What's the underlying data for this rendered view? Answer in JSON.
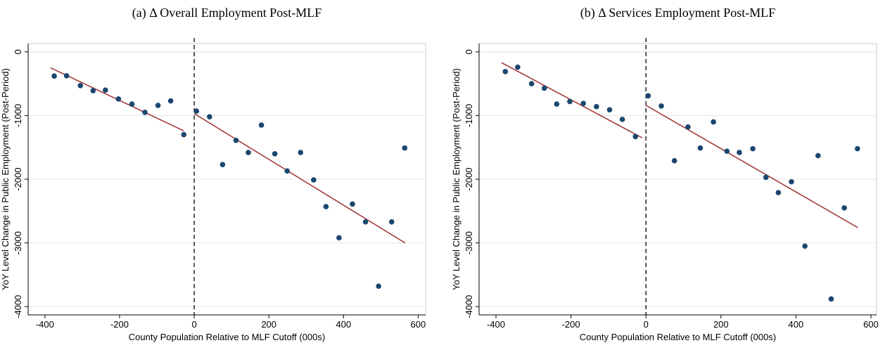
{
  "chart_data": [
    {
      "type": "scatter",
      "title": "(a) Δ Overall Employment Post-MLF",
      "x_label": "County Population Relative to MLF Cutoff (000s)",
      "y_label": "YoY Level Change in Public Employment (Post-Period)",
      "xlim": [
        -445,
        620
      ],
      "ylim": [
        -4130,
        130
      ],
      "xticks": [
        -400,
        -200,
        0,
        200,
        400,
        600
      ],
      "yticks": [
        0,
        -1000,
        -2000,
        -3000,
        -4000
      ],
      "grid": true,
      "cutoff_x": 0,
      "series": [
        {
          "color": "#1a476f",
          "x": [
            -375,
            -342,
            -305,
            -271,
            -238,
            -203,
            -167,
            -132,
            -97,
            -63,
            -28,
            6,
            41,
            76,
            112,
            145,
            180,
            216,
            249,
            285,
            320,
            353,
            388,
            424,
            459,
            494,
            529,
            564
          ],
          "values": [
            -380,
            -375,
            -530,
            -610,
            -600,
            -740,
            -820,
            -950,
            -840,
            -770,
            -1300,
            -930,
            -1020,
            -1770,
            -1390,
            -1580,
            -1150,
            -1600,
            -1870,
            -1580,
            -2010,
            -2430,
            -2920,
            -2390,
            -2670,
            -3680,
            -2670,
            -1510
          ]
        }
      ],
      "fits": [
        {
          "color": "#a03030",
          "x": [
            -385,
            -28
          ],
          "values": [
            -250,
            -1240
          ]
        },
        {
          "color": "#a03030",
          "x": [
            0,
            565
          ],
          "values": [
            -970,
            -3000
          ]
        }
      ]
    },
    {
      "type": "scatter",
      "title": "(b) Δ Services Employment Post-MLF",
      "x_label": "County Population Relative to MLF Cutoff (000s)",
      "y_label": "YoY Level Change in Public Employment (Post-Period)",
      "xlim": [
        -445,
        615
      ],
      "ylim": [
        -4130,
        130
      ],
      "xticks": [
        -400,
        -200,
        0,
        200,
        400,
        600
      ],
      "yticks": [
        0,
        -1000,
        -2000,
        -3000,
        -4000
      ],
      "grid": true,
      "cutoff_x": 0,
      "series": [
        {
          "color": "#1a476f",
          "x": [
            -375,
            -342,
            -305,
            -271,
            -238,
            -203,
            -167,
            -132,
            -97,
            -63,
            -28,
            6,
            41,
            76,
            112,
            145,
            180,
            216,
            249,
            285,
            320,
            353,
            388,
            424,
            459,
            494,
            529,
            564
          ],
          "values": [
            -310,
            -240,
            -500,
            -570,
            -820,
            -780,
            -810,
            -860,
            -910,
            -1060,
            -1330,
            -690,
            -850,
            -1710,
            -1180,
            -1510,
            -1100,
            -1560,
            -1580,
            -1520,
            -1970,
            -2210,
            -2040,
            -3050,
            -1630,
            -3880,
            -2450,
            -1520
          ]
        }
      ],
      "fits": [
        {
          "color": "#a03030",
          "x": [
            -385,
            -10
          ],
          "values": [
            -170,
            -1350
          ]
        },
        {
          "color": "#a03030",
          "x": [
            0,
            565
          ],
          "values": [
            -840,
            -2760
          ]
        }
      ]
    }
  ]
}
